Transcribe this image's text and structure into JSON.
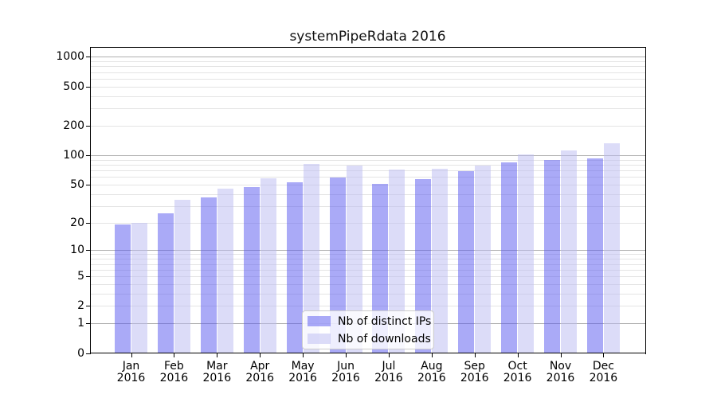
{
  "chart_data": {
    "type": "bar",
    "title": "systemPipeRdata 2016",
    "months": [
      "Jan",
      "Feb",
      "Mar",
      "Apr",
      "May",
      "Jun",
      "Jul",
      "Aug",
      "Sep",
      "Oct",
      "Nov",
      "Dec"
    ],
    "year": "2016",
    "series": [
      {
        "name": "Nb of distinct IPs",
        "color": "#aaaaf7",
        "values": [
          19,
          25,
          37,
          47,
          53,
          59,
          51,
          57,
          68,
          85,
          89,
          93
        ]
      },
      {
        "name": "Nb of downloads",
        "color": "#dcdcf8",
        "values": [
          20,
          35,
          45,
          58,
          82,
          79,
          71,
          73,
          78,
          102,
          111,
          132
        ]
      }
    ],
    "y_ticks": [
      0,
      1,
      2,
      5,
      10,
      20,
      50,
      100,
      200,
      500,
      1000
    ],
    "scale": "log10(1+x)",
    "ylim": [
      0,
      1260
    ],
    "grid": true,
    "legend_position": "bottom-center",
    "xlabel": "",
    "ylabel": ""
  }
}
